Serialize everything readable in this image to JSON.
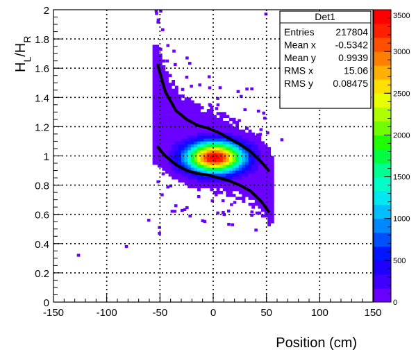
{
  "chart_data": {
    "type": "heatmap",
    "title": "",
    "xlabel": "Position (cm)",
    "ylabel_main": "H",
    "ylabel_sub1": "L",
    "ylabel_sep": "/H",
    "ylabel_sub2": "R",
    "xlim": [
      -150,
      150
    ],
    "ylim": [
      0,
      2
    ],
    "x_ticks": [
      -150,
      -100,
      -50,
      0,
      50,
      100,
      150
    ],
    "y_ticks": [
      0,
      0.2,
      0.4,
      0.6,
      0.8,
      1,
      1.2,
      1.4,
      1.6,
      1.8,
      2
    ],
    "y_tick_labels": [
      "0",
      "0.2",
      "0.4",
      "0.6",
      "0.8",
      "1",
      "1.2",
      "1.4",
      "1.6",
      "1.8",
      "2"
    ],
    "x_tick_labels": [
      "-150",
      "-100",
      "-50",
      "0",
      "50",
      "100",
      "150"
    ],
    "grid": true,
    "colorbar": {
      "min": 0,
      "max": 3500,
      "ticks": [
        0,
        500,
        1000,
        1500,
        2000,
        2500,
        3000,
        3500
      ],
      "tick_labels": [
        "0",
        "500",
        "1000",
        "1500",
        "2000",
        "2500",
        "3000",
        "3500"
      ],
      "colors": [
        "#6a00ff",
        "#3f00ff",
        "#1d00ff",
        "#0018ff",
        "#0050ff",
        "#0088ff",
        "#00bfff",
        "#00e8f0",
        "#00ffc8",
        "#00ff90",
        "#00ff40",
        "#20ff00",
        "#70ff00",
        "#b0ff00",
        "#e8ff00",
        "#ffe000",
        "#ffb000",
        "#ff8000",
        "#ff5000",
        "#ff2000",
        "#ff0000"
      ]
    },
    "stats_box": {
      "title": "Det1",
      "rows": [
        {
          "label": "Entries",
          "value": "217804"
        },
        {
          "label": "Mean x",
          "value": "-0.5342"
        },
        {
          "label": "Mean y",
          "value": "0.9939"
        },
        {
          "label": "RMS x",
          "value": "15.06"
        },
        {
          "label": "RMS y",
          "value": "0.08475"
        }
      ]
    },
    "density_core": {
      "x": 0,
      "y": 0.98,
      "sx": 18,
      "sy": 0.07,
      "peak": 3500
    },
    "curve_upper": [
      [
        -52,
        1.62
      ],
      [
        -45,
        1.44
      ],
      [
        -35,
        1.31
      ],
      [
        -25,
        1.25
      ],
      [
        -15,
        1.21
      ],
      [
        -5,
        1.19
      ],
      [
        5,
        1.16
      ],
      [
        15,
        1.12
      ],
      [
        25,
        1.08
      ],
      [
        35,
        1.03
      ],
      [
        45,
        0.96
      ],
      [
        52,
        0.9
      ]
    ],
    "curve_lower": [
      [
        -52,
        1.06
      ],
      [
        -45,
        1.0
      ],
      [
        -35,
        0.94
      ],
      [
        -25,
        0.9
      ],
      [
        -15,
        0.88
      ],
      [
        -5,
        0.87
      ],
      [
        5,
        0.85
      ],
      [
        15,
        0.83
      ],
      [
        25,
        0.8
      ],
      [
        35,
        0.76
      ],
      [
        45,
        0.69
      ],
      [
        52,
        0.62
      ]
    ],
    "outliers": [
      [
        -128,
        0.31
      ],
      [
        -83,
        0.37
      ],
      [
        -52,
        0.5
      ],
      [
        -52,
        0.46
      ],
      [
        -55,
        1.98
      ],
      [
        -53,
        1.92
      ],
      [
        48,
        1.96
      ],
      [
        63,
        1.1
      ],
      [
        -62,
        0.55
      ]
    ]
  }
}
